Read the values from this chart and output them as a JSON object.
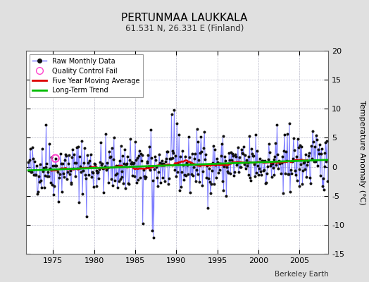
{
  "title": "PERTUNMAA LAUKKALA",
  "subtitle": "61.531 N, 26.331 E (Finland)",
  "ylabel": "Temperature Anomaly (°C)",
  "credit": "Berkeley Earth",
  "start_year": 1972.0,
  "end_year": 2008.5,
  "ylim": [
    -15,
    20
  ],
  "yticks": [
    -15,
    -10,
    -5,
    0,
    5,
    10,
    15,
    20
  ],
  "xticks": [
    1975,
    1980,
    1985,
    1990,
    1995,
    2000,
    2005
  ],
  "bg_color": "#e0e0e0",
  "plot_bg_color": "#ffffff",
  "raw_color": "#6666ff",
  "raw_marker_color": "#111111",
  "moving_avg_color": "#dd0000",
  "trend_color": "#00bb00",
  "qc_fail_color": "#ff44cc",
  "seed": 42
}
